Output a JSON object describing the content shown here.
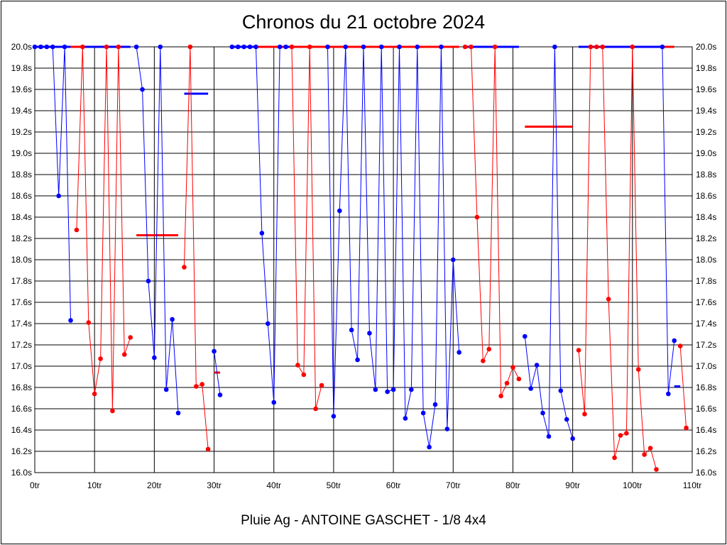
{
  "chart_data": {
    "type": "line",
    "title": "Chronos du 21 octobre 2024",
    "subtitle": "Pluie Ag - ANTOINE GASCHET - 1/8 4x4",
    "x_ticks": [
      "0tr",
      "10tr",
      "20tr",
      "30tr",
      "40tr",
      "50tr",
      "60tr",
      "70tr",
      "80tr",
      "90tr",
      "100tr",
      "110tr"
    ],
    "y_ticks": [
      "16.0s",
      "16.2s",
      "16.4s",
      "16.6s",
      "16.8s",
      "17.0s",
      "17.2s",
      "17.4s",
      "17.6s",
      "17.8s",
      "18.0s",
      "18.2s",
      "18.4s",
      "18.6s",
      "18.8s",
      "19.0s",
      "19.2s",
      "19.4s",
      "19.6s",
      "19.8s",
      "20.0s"
    ],
    "xlim": [
      0,
      110
    ],
    "ylim": [
      16.0,
      20.0
    ],
    "grid": true,
    "colors": {
      "blue": "#0000ff",
      "red": "#ff0000"
    },
    "series": [
      {
        "color": "blue",
        "points": [
          [
            0,
            20.0
          ],
          [
            1,
            20.0
          ],
          [
            2,
            20.0
          ],
          [
            3,
            20.0
          ],
          [
            4,
            18.6
          ],
          [
            5,
            20.0
          ],
          [
            6,
            17.43
          ]
        ]
      },
      {
        "color": "red",
        "points": [
          [
            7,
            18.28
          ],
          [
            8,
            20.0
          ],
          [
            9,
            17.41
          ],
          [
            10,
            16.74
          ],
          [
            11,
            17.07
          ],
          [
            12,
            20.0
          ],
          [
            13,
            16.58
          ],
          [
            14,
            20.0
          ],
          [
            15,
            17.11
          ],
          [
            16,
            17.27
          ]
        ]
      },
      {
        "color": "blue",
        "points": [
          [
            17,
            20.0
          ],
          [
            18,
            19.6
          ],
          [
            19,
            17.8
          ],
          [
            20,
            17.08
          ],
          [
            21,
            20.0
          ],
          [
            22,
            16.78
          ],
          [
            23,
            17.44
          ],
          [
            24,
            16.56
          ]
        ]
      },
      {
        "color": "red",
        "points": [
          [
            25,
            17.93
          ],
          [
            26,
            20.0
          ],
          [
            27,
            16.81
          ],
          [
            28,
            16.83
          ],
          [
            29,
            16.22
          ]
        ]
      },
      {
        "color": "blue",
        "points": [
          [
            30,
            17.14
          ],
          [
            31,
            16.73
          ]
        ]
      },
      {
        "color": "blue",
        "points": [
          [
            33,
            20.0
          ],
          [
            34,
            20.0
          ],
          [
            35,
            20.0
          ],
          [
            36,
            20.0
          ],
          [
            37,
            20.0
          ],
          [
            38,
            18.25
          ],
          [
            39,
            17.4
          ],
          [
            40,
            16.66
          ],
          [
            41,
            20.0
          ],
          [
            42,
            20.0
          ]
        ]
      },
      {
        "color": "red",
        "points": [
          [
            43,
            20.0
          ],
          [
            44,
            17.01
          ],
          [
            45,
            16.92
          ],
          [
            46,
            20.0
          ],
          [
            47,
            16.6
          ],
          [
            48,
            16.82
          ]
        ]
      },
      {
        "color": "blue",
        "points": [
          [
            49,
            20.0
          ],
          [
            50,
            16.53
          ],
          [
            51,
            18.46
          ],
          [
            52,
            20.0
          ],
          [
            53,
            17.34
          ],
          [
            54,
            17.06
          ],
          [
            55,
            20.0
          ],
          [
            56,
            17.31
          ],
          [
            57,
            16.78
          ],
          [
            58,
            20.0
          ],
          [
            59,
            16.76
          ],
          [
            60,
            16.78
          ],
          [
            61,
            20.0
          ],
          [
            62,
            16.51
          ],
          [
            63,
            16.78
          ],
          [
            64,
            20.0
          ],
          [
            65,
            16.56
          ],
          [
            66,
            16.24
          ],
          [
            67,
            16.64
          ],
          [
            68,
            20.0
          ],
          [
            69,
            16.41
          ],
          [
            70,
            18.0
          ],
          [
            71,
            17.13
          ]
        ]
      },
      {
        "color": "red",
        "points": [
          [
            72,
            20.0
          ],
          [
            73,
            20.0
          ],
          [
            74,
            18.4
          ],
          [
            75,
            17.05
          ],
          [
            76,
            17.16
          ],
          [
            77,
            20.0
          ],
          [
            78,
            16.72
          ],
          [
            79,
            16.84
          ],
          [
            80,
            16.99
          ],
          [
            81,
            16.88
          ]
        ]
      },
      {
        "color": "blue",
        "points": [
          [
            82,
            17.28
          ],
          [
            83,
            16.79
          ],
          [
            84,
            17.01
          ],
          [
            85,
            16.56
          ],
          [
            86,
            16.34
          ],
          [
            87,
            20.0
          ],
          [
            88,
            16.77
          ],
          [
            89,
            16.5
          ],
          [
            90,
            16.32
          ]
        ]
      },
      {
        "color": "red",
        "points": [
          [
            91,
            17.15
          ],
          [
            92,
            16.55
          ],
          [
            93,
            20.0
          ],
          [
            94,
            20.0
          ],
          [
            95,
            20.0
          ],
          [
            96,
            17.63
          ],
          [
            97,
            16.14
          ],
          [
            98,
            16.35
          ],
          [
            99,
            16.37
          ],
          [
            100,
            20.0
          ],
          [
            101,
            16.97
          ],
          [
            102,
            16.17
          ],
          [
            103,
            16.23
          ],
          [
            104,
            16.03
          ]
        ]
      },
      {
        "color": "blue",
        "points": [
          [
            105,
            20.0
          ],
          [
            106,
            16.74
          ],
          [
            107,
            17.24
          ]
        ]
      },
      {
        "color": "red",
        "points": [
          [
            108,
            17.19
          ],
          [
            109,
            16.42
          ]
        ]
      }
    ],
    "average_segments": [
      {
        "color": "blue",
        "x": [
          0,
          6
        ],
        "y": 20.0
      },
      {
        "color": "red",
        "x": [
          6,
          8
        ],
        "y": 20.0
      },
      {
        "color": "blue",
        "x": [
          8,
          16
        ],
        "y": 20.0
      },
      {
        "color": "red",
        "x": [
          17,
          24
        ],
        "y": 18.23
      },
      {
        "color": "blue",
        "x": [
          25,
          29
        ],
        "y": 19.56
      },
      {
        "color": "red",
        "x": [
          30,
          31
        ],
        "y": 16.94
      },
      {
        "color": "blue",
        "x": [
          33,
          37
        ],
        "y": 20.0
      },
      {
        "color": "red",
        "x": [
          37,
          42
        ],
        "y": 20.0
      },
      {
        "color": "blue",
        "x": [
          42,
          43
        ],
        "y": 20.0
      },
      {
        "color": "red",
        "x": [
          43,
          71
        ],
        "y": 20.0
      },
      {
        "color": "blue",
        "x": [
          72,
          81
        ],
        "y": 20.0
      },
      {
        "color": "red",
        "x": [
          82,
          90
        ],
        "y": 19.25
      },
      {
        "color": "blue",
        "x": [
          91,
          105
        ],
        "y": 20.0
      },
      {
        "color": "red",
        "x": [
          105,
          107
        ],
        "y": 20.0
      },
      {
        "color": "blue",
        "x": [
          107,
          108
        ],
        "y": 16.81
      }
    ]
  }
}
